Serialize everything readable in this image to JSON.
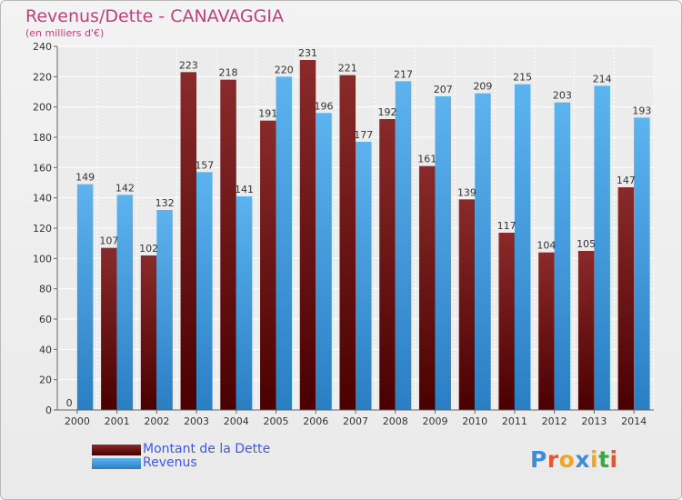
{
  "chart_data": {
    "type": "bar",
    "title": "Revenus/Dette - CANAVAGGIA",
    "subtitle": "(en milliers d'€)",
    "categories": [
      "2000",
      "2001",
      "2002",
      "2003",
      "2004",
      "2005",
      "2006",
      "2007",
      "2008",
      "2009",
      "2010",
      "2011",
      "2012",
      "2013",
      "2014"
    ],
    "series": [
      {
        "name": "Montant de la Dette",
        "color": "#7a1c1c",
        "values": [
          0,
          107,
          102,
          223,
          218,
          191,
          231,
          221,
          192,
          161,
          139,
          117,
          104,
          105,
          147
        ]
      },
      {
        "name": "Revenus",
        "color": "#4aa6e6",
        "values": [
          149,
          142,
          132,
          157,
          141,
          220,
          196,
          177,
          217,
          207,
          209,
          215,
          203,
          214,
          193
        ]
      }
    ],
    "ylim": [
      0,
      240
    ],
    "yticks": [
      0,
      20,
      40,
      60,
      80,
      100,
      120,
      140,
      160,
      180,
      200,
      220,
      240
    ],
    "grid": true,
    "legend_position": "bottom-left"
  },
  "logo": {
    "text": "Proxiti"
  }
}
